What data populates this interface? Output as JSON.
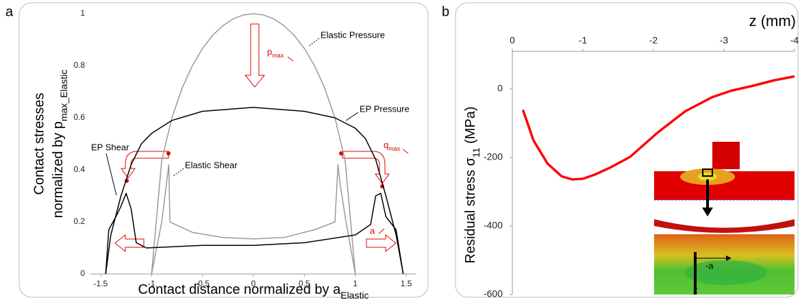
{
  "chart_data": [
    {
      "type": "line",
      "panel_label": "a",
      "x_label": {
        "text": "Contact distance normalized by a",
        "subscript": "Elastic"
      },
      "y_label": {
        "lines": [
          "Contact stresses",
          "normalized by p"
        ],
        "subscript": "max_Elastic"
      },
      "xlim": [
        -1.6,
        1.6
      ],
      "xticks": [
        -1.5,
        -1,
        -0.5,
        0,
        0.5,
        1,
        1.5
      ],
      "ylim": [
        0,
        1
      ],
      "yticks": [
        0,
        0.2,
        0.4,
        0.6,
        0.8,
        1
      ],
      "series": [
        {
          "name": "Elastic Pressure",
          "color": "#999999",
          "x": [
            -1,
            -0.9,
            -0.8,
            -0.7,
            -0.6,
            -0.5,
            -0.4,
            -0.3,
            -0.2,
            -0.1,
            0,
            0.1,
            0.2,
            0.3,
            0.4,
            0.5,
            0.6,
            0.7,
            0.8,
            0.9,
            1
          ],
          "values": [
            0,
            0.436,
            0.6,
            0.714,
            0.8,
            0.866,
            0.917,
            0.954,
            0.98,
            0.995,
            1,
            0.995,
            0.98,
            0.954,
            0.917,
            0.866,
            0.8,
            0.714,
            0.6,
            0.436,
            0
          ]
        },
        {
          "name": "EP Pressure",
          "color": "#000000",
          "x": [
            -1.45,
            -1.4,
            -1.3,
            -1.2,
            -1.1,
            -1,
            -0.8,
            -0.5,
            0,
            0.5,
            0.8,
            1,
            1.1,
            1.2,
            1.3,
            1.4,
            1.47
          ],
          "values": [
            0,
            0.15,
            0.3,
            0.42,
            0.5,
            0.54,
            0.59,
            0.625,
            0.64,
            0.625,
            0.6,
            0.56,
            0.52,
            0.44,
            0.3,
            0.15,
            0
          ]
        },
        {
          "name": "Elastic Shear",
          "color": "#999999",
          "x": [
            -1,
            -0.9,
            -0.83,
            -0.82,
            -0.6,
            -0.3,
            0,
            0.3,
            0.6,
            0.8,
            0.83,
            0.85,
            0.9,
            1
          ],
          "values": [
            0,
            0.2,
            0.42,
            0.2,
            0.16,
            0.14,
            0.135,
            0.14,
            0.17,
            0.2,
            0.42,
            0.35,
            0.22,
            0
          ]
        },
        {
          "name": "EP Shear",
          "color": "#000000",
          "x": [
            -1.45,
            -1.42,
            -1.35,
            -1.3,
            -1.25,
            -1.2,
            -1.15,
            -1.05,
            -0.5,
            0,
            0.5,
            1,
            1.15,
            1.2,
            1.25,
            1.3,
            1.4,
            1.47
          ],
          "values": [
            0,
            0.17,
            0.22,
            0.26,
            0.31,
            0.25,
            0.12,
            0.1,
            0.11,
            0.11,
            0.12,
            0.15,
            0.19,
            0.3,
            0.31,
            0.22,
            0.17,
            0
          ]
        }
      ],
      "markers": [
        {
          "text": "p",
          "subscript": "max"
        },
        {
          "text": "q",
          "subscript": "max"
        },
        {
          "text": "a"
        }
      ]
    },
    {
      "type": "line",
      "panel_label": "b",
      "x_label": "z (mm)",
      "y_label": {
        "text": "Residual stress σ",
        "subscript": "11",
        "suffix": " (MPa)"
      },
      "xlim": [
        0,
        -4
      ],
      "xticks": [
        0,
        -1,
        -2,
        -3,
        -4
      ],
      "ylim": [
        -600,
        110
      ],
      "yticks": [
        0,
        -200,
        -400,
        -600
      ],
      "series": [
        {
          "color": "#ff0000",
          "x": [
            -0.15,
            -0.3,
            -0.5,
            -0.7,
            -0.85,
            -1.0,
            -1.18,
            -1.4,
            -1.67,
            -2.06,
            -2.45,
            -2.83,
            -3.1,
            -3.42,
            -3.7,
            -4
          ],
          "values": [
            -61,
            -150,
            -218,
            -255,
            -264,
            -262,
            -249,
            -228,
            -198,
            -127,
            -65,
            -24,
            -5,
            10,
            25,
            37
          ]
        }
      ],
      "inset_labels": [
        "-a",
        "z"
      ]
    }
  ]
}
